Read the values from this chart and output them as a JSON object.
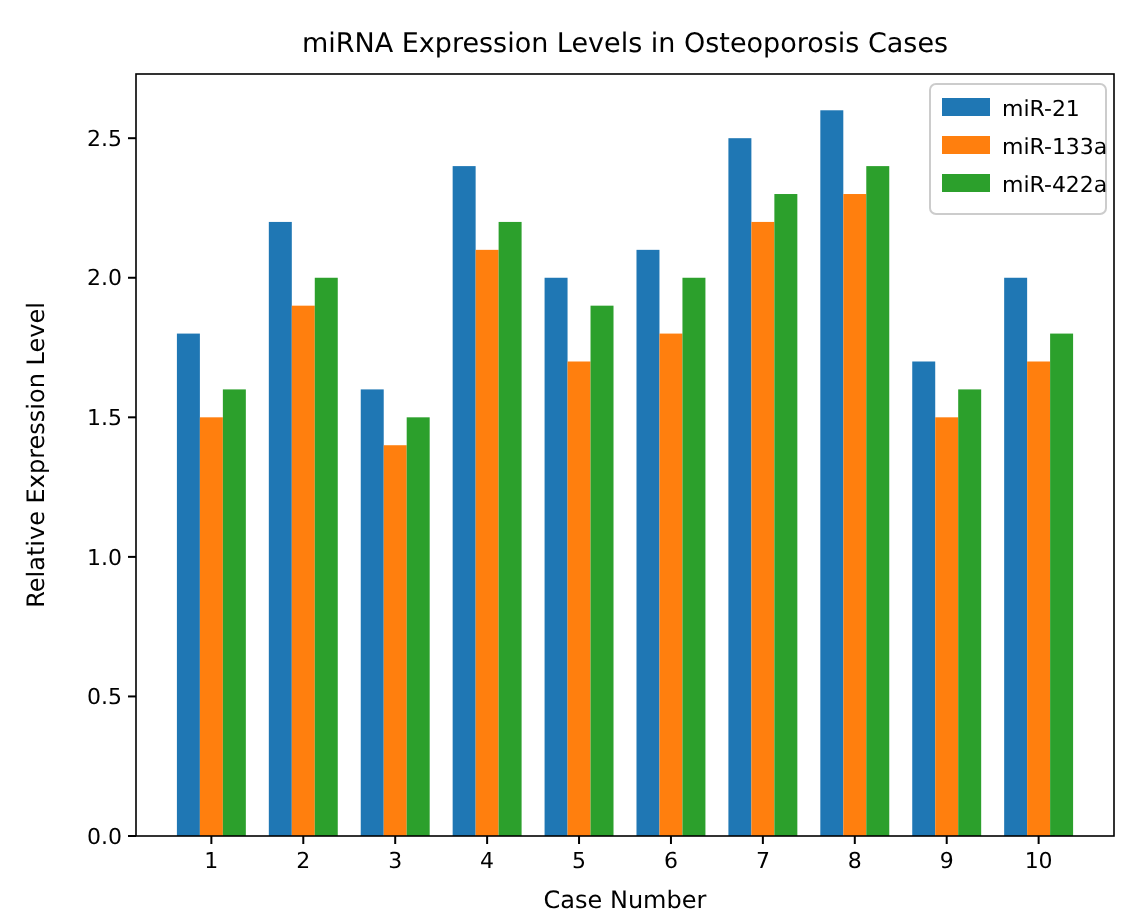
{
  "chart_data": {
    "type": "bar",
    "title": "miRNA Expression Levels in Osteoporosis Cases",
    "xlabel": "Case Number",
    "ylabel": "Relative Expression Level",
    "categories": [
      "1",
      "2",
      "3",
      "4",
      "5",
      "6",
      "7",
      "8",
      "9",
      "10"
    ],
    "series": [
      {
        "name": "miR-21",
        "color": "#1f77b4",
        "values": [
          1.8,
          2.2,
          1.6,
          2.4,
          2.0,
          2.1,
          2.5,
          2.6,
          1.7,
          2.0
        ]
      },
      {
        "name": "miR-133a",
        "color": "#ff7f0e",
        "values": [
          1.5,
          1.9,
          1.4,
          2.1,
          1.7,
          1.8,
          2.2,
          2.3,
          1.5,
          1.7
        ]
      },
      {
        "name": "miR-422a",
        "color": "#2ca02c",
        "values": [
          1.6,
          2.0,
          1.5,
          2.2,
          1.9,
          2.0,
          2.3,
          2.4,
          1.6,
          1.8
        ]
      }
    ],
    "ylim": [
      0,
      2.73
    ],
    "yticks": [
      {
        "value": 0,
        "label": "0.0"
      },
      {
        "value": 0.5,
        "label": "0.5"
      },
      {
        "value": 1,
        "label": "1.0"
      },
      {
        "value": 1.5,
        "label": "1.5"
      },
      {
        "value": 2,
        "label": "2.0"
      },
      {
        "value": 2.5,
        "label": "2.5"
      }
    ],
    "legend": "top right",
    "grid": false
  }
}
